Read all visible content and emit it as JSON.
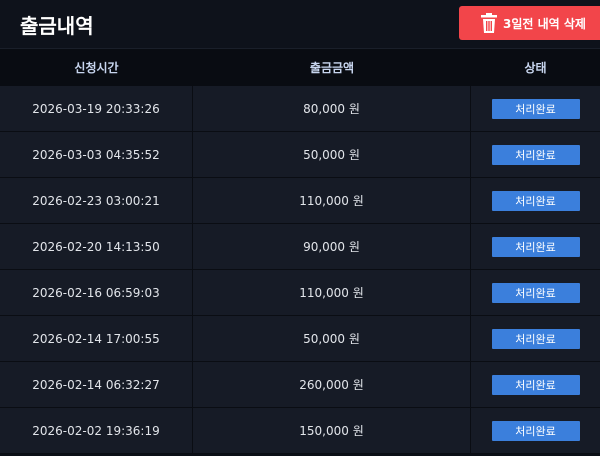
{
  "header": {
    "title": "출금내역",
    "delete_button": "3일전 내역 삭제"
  },
  "table": {
    "columns": [
      "신청시간",
      "출금금액",
      "상태"
    ],
    "rows": [
      [
        "2026-03-19 20:33:26",
        "80,000 원",
        "처리완료"
      ],
      [
        "2026-03-03 04:35:52",
        "50,000 원",
        "처리완료"
      ],
      [
        "2026-02-23 03:00:21",
        "110,000 원",
        "처리완료"
      ],
      [
        "2026-02-20 14:13:50",
        "90,000 원",
        "처리완료"
      ],
      [
        "2026-02-16 06:59:03",
        "110,000 원",
        "처리완료"
      ],
      [
        "2026-02-14 17:00:55",
        "50,000 원",
        "처리완료"
      ],
      [
        "2026-02-14 06:32:27",
        "260,000 원",
        "처리완료"
      ],
      [
        "2026-02-02 19:36:19",
        "150,000 원",
        "처리완료"
      ]
    ]
  }
}
